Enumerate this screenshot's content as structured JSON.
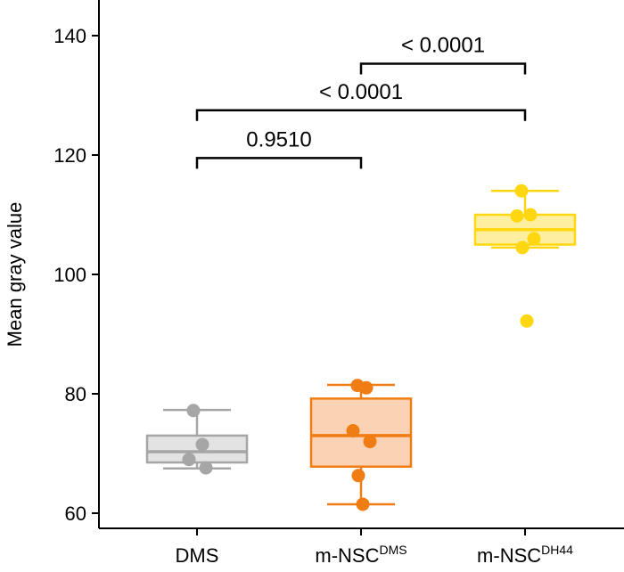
{
  "chart_data": {
    "type": "box",
    "title": "",
    "xlabel": "",
    "ylabel": "Mean gray value",
    "ylim": [
      59,
      145
    ],
    "yticks": [
      60,
      80,
      100,
      120,
      140
    ],
    "categories": [
      {
        "base": "DMS",
        "sup": ""
      },
      {
        "base": "m-NSC",
        "sup": "DMS"
      },
      {
        "base": "m-NSC",
        "sup": "DH44"
      }
    ],
    "groups": [
      {
        "color": "#a6a6a6",
        "fill": "#e3e3e3",
        "whisker_low": 67.5,
        "q1": 68.5,
        "median": 70.3,
        "q3": 73.0,
        "whisker_high": 77.3,
        "points": [
          77.2,
          71.5,
          69.0,
          67.6
        ]
      },
      {
        "color": "#f07d13",
        "fill": "#fbd3b4",
        "whisker_low": 61.5,
        "q1": 67.8,
        "median": 73.0,
        "q3": 79.2,
        "whisker_high": 81.5,
        "points": [
          81.4,
          81.0,
          73.8,
          72.0,
          66.3,
          61.5
        ]
      },
      {
        "color": "#ffd711",
        "fill": "#fcefa0",
        "whisker_low": 104.5,
        "q1": 105.0,
        "median": 107.5,
        "q3": 110.0,
        "whisker_high": 114.0,
        "points": [
          114.0,
          110.0,
          109.8,
          106.0,
          104.5,
          92.2
        ]
      }
    ],
    "comparisons": [
      {
        "from": 0,
        "to": 1,
        "y": 119.5,
        "label": "0.9510"
      },
      {
        "from": 0,
        "to": 2,
        "y": 127.5,
        "label": "< 0.0001"
      },
      {
        "from": 1,
        "to": 2,
        "y": 135.3,
        "label": "< 0.0001"
      }
    ]
  }
}
